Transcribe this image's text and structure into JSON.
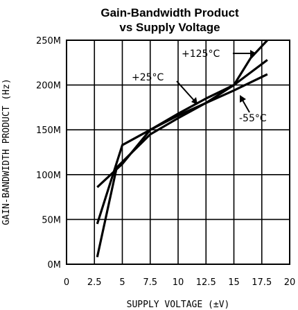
{
  "chart_data": {
    "type": "line",
    "title_line1": "Gain-Bandwidth Product",
    "title_line2": "vs Supply Voltage",
    "xlabel": "SUPPLY VOLTAGE (±V)",
    "ylabel": "GAIN-BANDWIDTH PRODUCT (Hz)",
    "xlim": [
      0,
      20
    ],
    "ylim": [
      0,
      250
    ],
    "x_ticks": [
      0,
      2.5,
      5,
      7.5,
      10,
      12.5,
      15,
      17.5,
      20
    ],
    "x_tick_labels": [
      "0",
      "2.5",
      "5",
      "7.5",
      "10",
      "12.5",
      "15",
      "17.5",
      "20"
    ],
    "y_ticks": [
      0,
      50,
      100,
      150,
      200,
      250
    ],
    "y_tick_labels": [
      "0M",
      "50M",
      "100M",
      "150M",
      "200M",
      "250M"
    ],
    "grid": true,
    "series": [
      {
        "name": "+125°C",
        "x": [
          2.75,
          4.5,
          7.5,
          10,
          12.5,
          15,
          16.5,
          18
        ],
        "y": [
          8,
          108,
          145,
          163,
          180,
          200,
          230,
          250
        ]
      },
      {
        "name": "+25°C",
        "x": [
          2.75,
          5,
          7.5,
          10,
          12.5,
          15,
          18
        ],
        "y": [
          45,
          133,
          150,
          168,
          185,
          200,
          228
        ]
      },
      {
        "name": "-55°C",
        "x": [
          2.75,
          5,
          7.5,
          10,
          12.5,
          15,
          18
        ],
        "y": [
          86,
          112,
          150,
          166,
          180,
          194,
          212
        ]
      }
    ]
  }
}
